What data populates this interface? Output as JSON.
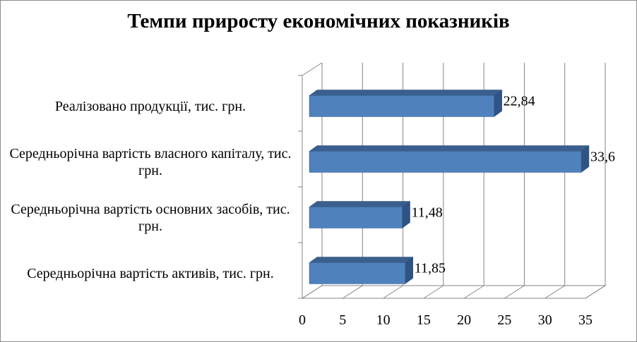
{
  "chart_data": {
    "type": "bar",
    "orientation": "horizontal",
    "style": "3d",
    "title": "Темпи приросту економічних показників",
    "categories": [
      "Реалізовано продукції, тис. грн.",
      "Середньорічна вартість власного капіталу, тис. грн.",
      "Середньорічна вартість основних засобів, тис. грн.",
      "Середньорічна вартість активів, тис. грн."
    ],
    "values": [
      22.84,
      33.6,
      11.48,
      11.85
    ],
    "value_labels": [
      "22,84",
      "33,6",
      "11,48",
      "11,85"
    ],
    "xlim": [
      0,
      35
    ],
    "x_ticks": [
      "0",
      "5",
      "10",
      "15",
      "20",
      "25",
      "30",
      "35"
    ],
    "grid": true,
    "bar_color": "#4f81bd"
  }
}
